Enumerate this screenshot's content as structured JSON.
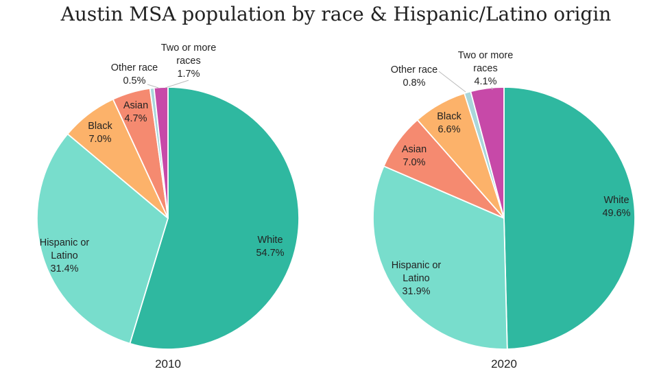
{
  "title": "Austin MSA population by race & Hispanic/Latino origin",
  "colors": {
    "White": "#2fb8a0",
    "Hispanic or Latino": "#78ddcc",
    "Asian": "#f58a70",
    "Black": "#fcb26a",
    "Other race": "#a9d6da",
    "Two or more races": "#c749a8"
  },
  "chart_data": [
    {
      "type": "pie",
      "year_label": "2010",
      "slices": [
        {
          "label_lines": [
            "White"
          ],
          "value": 54.7,
          "value_label": "54.7%",
          "color": "#2fb8a0"
        },
        {
          "label_lines": [
            "Hispanic or",
            "Latino"
          ],
          "value": 31.4,
          "value_label": "31.4%",
          "color": "#78ddcc"
        },
        {
          "label_lines": [
            "Black"
          ],
          "value": 7.0,
          "value_label": "7.0%",
          "color": "#fcb26a"
        },
        {
          "label_lines": [
            "Asian"
          ],
          "value": 4.7,
          "value_label": "4.7%",
          "color": "#f58a70"
        },
        {
          "label_lines": [
            "Other race"
          ],
          "value": 0.5,
          "value_label": "0.5%",
          "color": "#a9d6da"
        },
        {
          "label_lines": [
            "Two or more",
            "races"
          ],
          "value": 1.7,
          "value_label": "1.7%",
          "color": "#c749a8"
        }
      ]
    },
    {
      "type": "pie",
      "year_label": "2020",
      "slices": [
        {
          "label_lines": [
            "White"
          ],
          "value": 49.6,
          "value_label": "49.6%",
          "color": "#2fb8a0"
        },
        {
          "label_lines": [
            "Hispanic or",
            "Latino"
          ],
          "value": 31.9,
          "value_label": "31.9%",
          "color": "#78ddcc"
        },
        {
          "label_lines": [
            "Asian"
          ],
          "value": 7.0,
          "value_label": "7.0%",
          "color": "#f58a70"
        },
        {
          "label_lines": [
            "Black"
          ],
          "value": 6.6,
          "value_label": "6.6%",
          "color": "#fcb26a"
        },
        {
          "label_lines": [
            "Other race"
          ],
          "value": 0.8,
          "value_label": "0.8%",
          "color": "#a9d6da"
        },
        {
          "label_lines": [
            "Two or more",
            "races"
          ],
          "value": 4.1,
          "value_label": "4.1%",
          "color": "#c749a8"
        }
      ]
    }
  ]
}
